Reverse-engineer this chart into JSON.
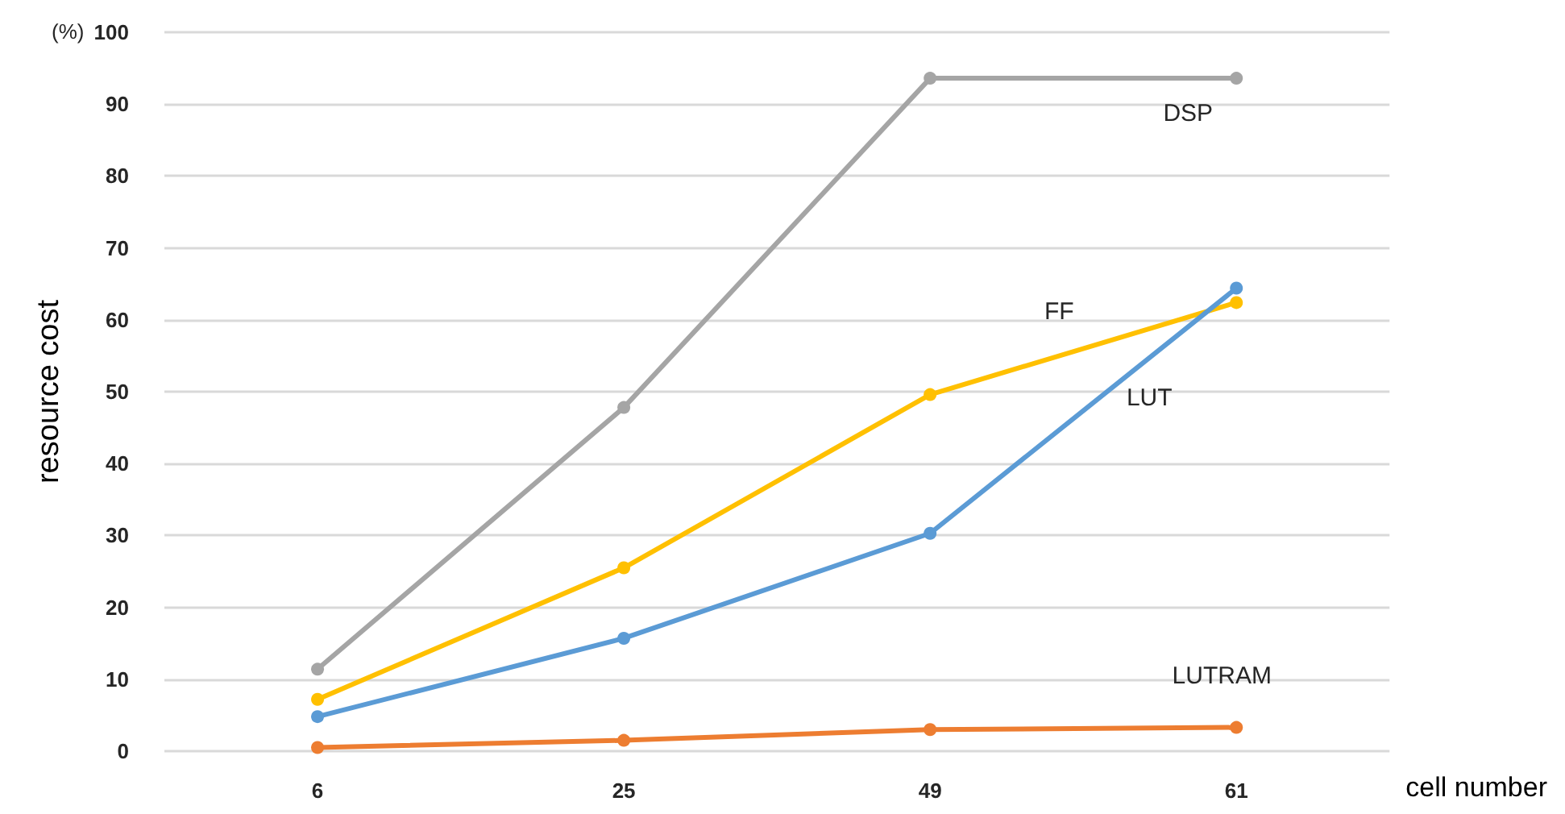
{
  "chart_data": {
    "type": "line",
    "categories": [
      "6",
      "25",
      "49",
      "61"
    ],
    "series": [
      {
        "name": "DSP",
        "color": "#a5a5a5",
        "values": [
          11.4,
          47.8,
          93.6,
          93.6
        ]
      },
      {
        "name": "FF",
        "color": "#ffc000",
        "values": [
          7.2,
          25.5,
          49.6,
          62.4
        ]
      },
      {
        "name": "LUT",
        "color": "#5b9bd5",
        "values": [
          4.8,
          15.7,
          30.3,
          64.4
        ]
      },
      {
        "name": "LUTRAM",
        "color": "#ed7d31",
        "values": [
          0.5,
          1.5,
          3.0,
          3.3
        ]
      }
    ],
    "xlabel": "cell number",
    "ylabel": "resource cost",
    "annotations": [
      "(%)"
    ],
    "ylim": [
      0,
      100
    ],
    "yticks": [
      0,
      10,
      20,
      30,
      40,
      50,
      60,
      70,
      80,
      90,
      100
    ],
    "grid": "y",
    "marker": "circle",
    "line_style": "solid",
    "legend": false
  }
}
